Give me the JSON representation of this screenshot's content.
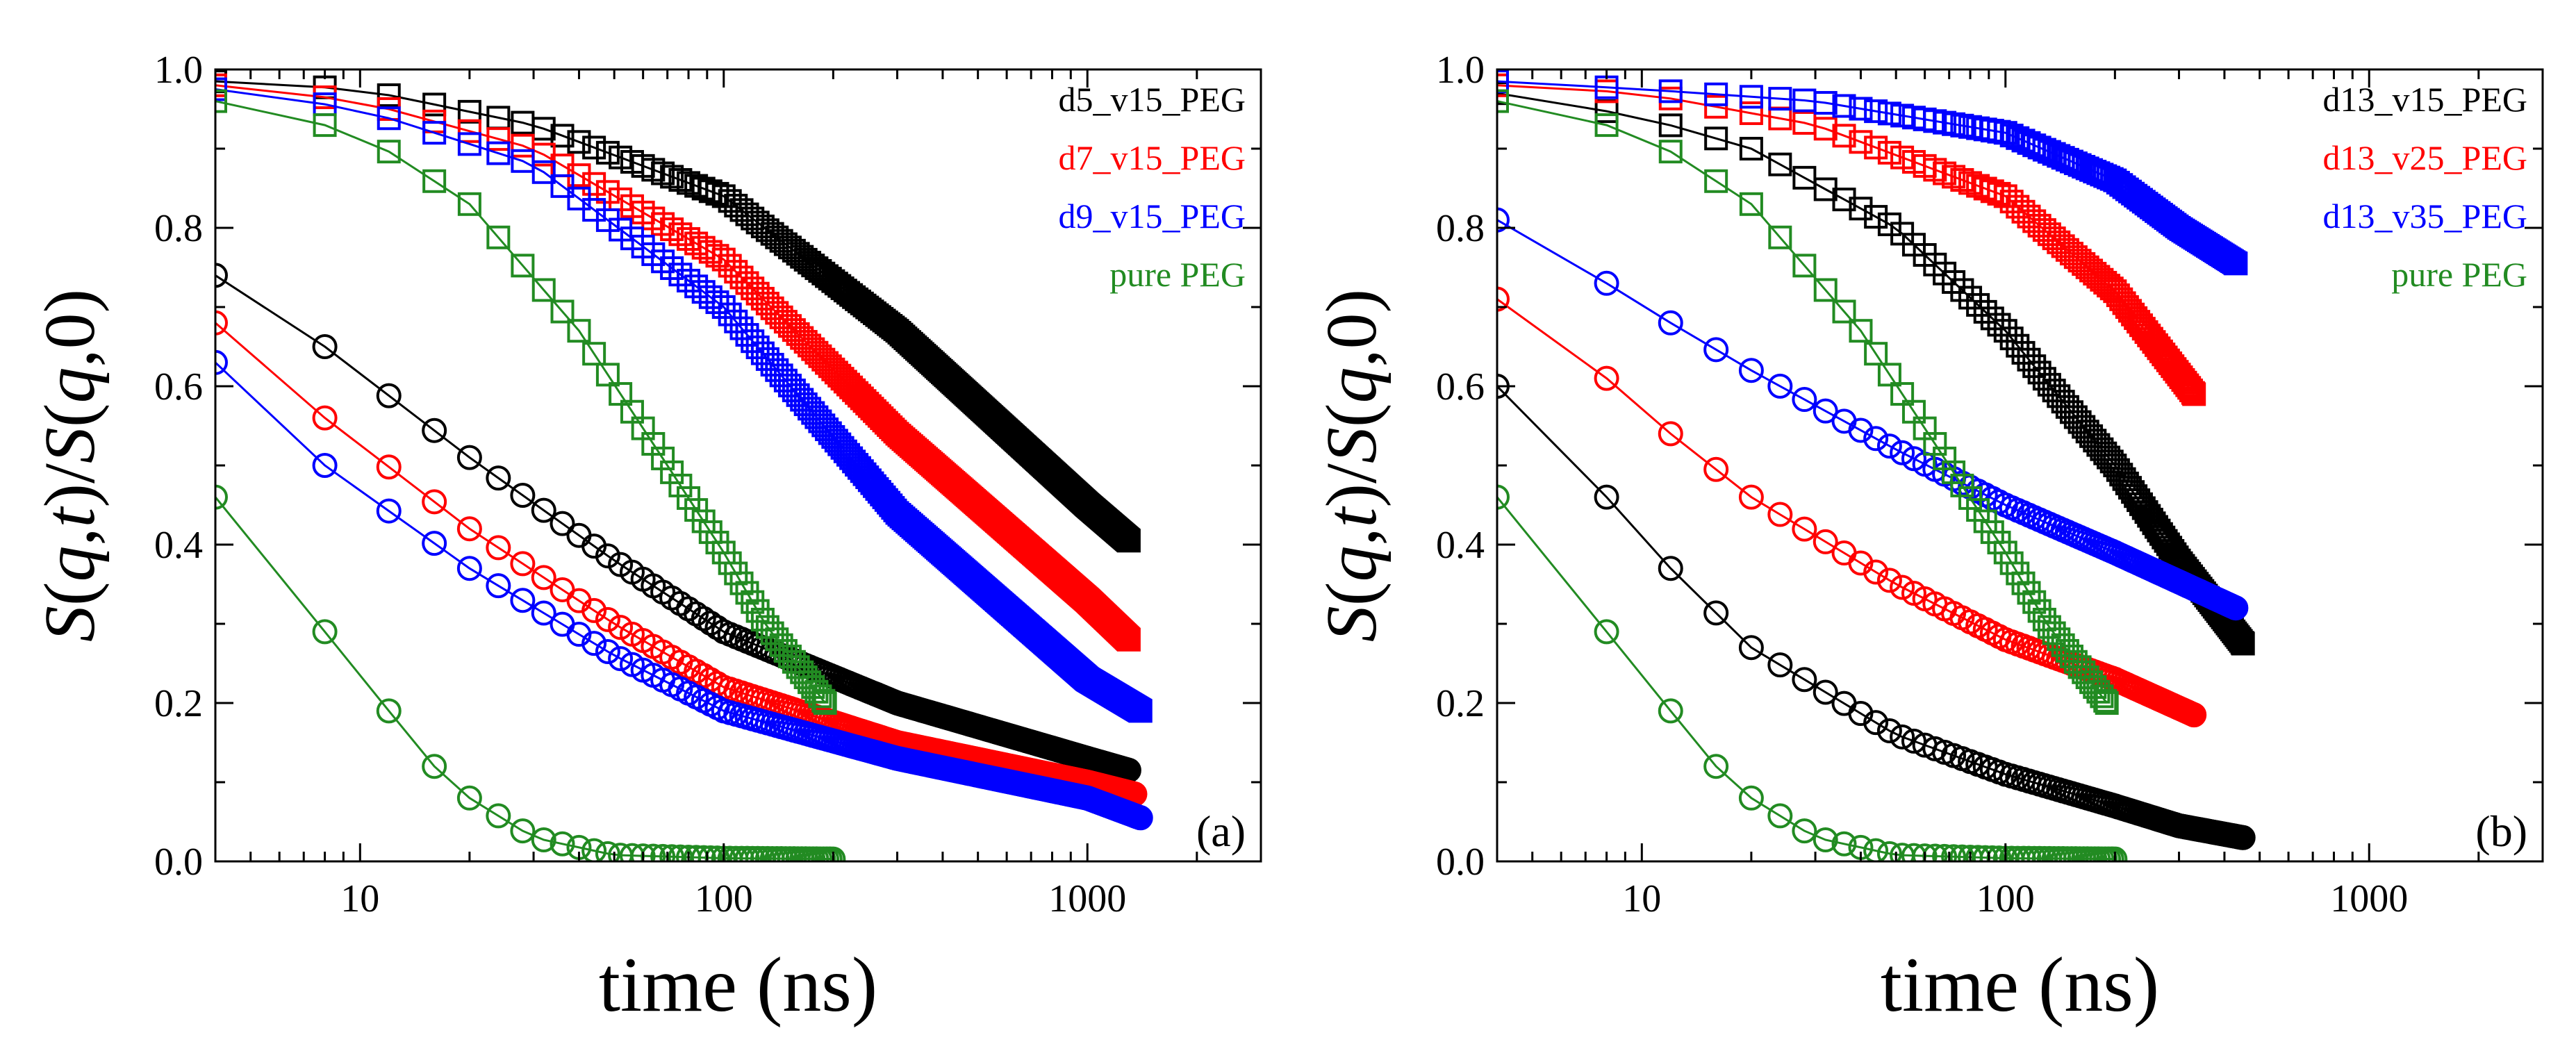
{
  "chart_data": [
    {
      "type": "scatter",
      "panel_label": "(a)",
      "xlabel": "time (ns)",
      "ylabel": "S(q,t)/S(q,0)",
      "xscale": "log",
      "xlim": [
        4,
        3000
      ],
      "ylim": [
        0.0,
        1.0
      ],
      "xticks": [
        10,
        100,
        1000
      ],
      "yticks": [
        0.0,
        0.2,
        0.4,
        0.6,
        0.8,
        1.0
      ],
      "legend_position": "top-right",
      "series": [
        {
          "name": "d5_v15_PEG",
          "color": "#000000",
          "high": {
            "t0": 4,
            "tEnd": 1300,
            "values": [
              [
                4,
                0.985
              ],
              [
                10,
                0.975
              ],
              [
                30,
                0.93
              ],
              [
                100,
                0.84
              ],
              [
                300,
                0.67
              ],
              [
                1000,
                0.45
              ],
              [
                1300,
                0.405
              ]
            ]
          },
          "low": {
            "t0": 4,
            "tEnd": 1300,
            "values": [
              [
                4,
                0.74
              ],
              [
                8,
                0.65
              ],
              [
                20,
                0.51
              ],
              [
                50,
                0.38
              ],
              [
                100,
                0.29
              ],
              [
                300,
                0.2
              ],
              [
                1000,
                0.13
              ],
              [
                1300,
                0.115
              ]
            ]
          }
        },
        {
          "name": "d7_v15_PEG",
          "color": "#ff0000",
          "high": {
            "t0": 4,
            "tEnd": 1300,
            "values": [
              [
                4,
                0.98
              ],
              [
                10,
                0.96
              ],
              [
                30,
                0.9
              ],
              [
                100,
                0.76
              ],
              [
                300,
                0.54
              ],
              [
                1000,
                0.33
              ],
              [
                1300,
                0.28
              ]
            ]
          },
          "low": {
            "t0": 4,
            "tEnd": 1350,
            "values": [
              [
                4,
                0.68
              ],
              [
                8,
                0.56
              ],
              [
                20,
                0.42
              ],
              [
                50,
                0.3
              ],
              [
                100,
                0.22
              ],
              [
                300,
                0.15
              ],
              [
                1000,
                0.1
              ],
              [
                1350,
                0.085
              ]
            ]
          }
        },
        {
          "name": "d9_v15_PEG",
          "color": "#0000ff",
          "high": {
            "t0": 4,
            "tEnd": 1400,
            "values": [
              [
                4,
                0.975
              ],
              [
                10,
                0.95
              ],
              [
                30,
                0.88
              ],
              [
                100,
                0.7
              ],
              [
                300,
                0.44
              ],
              [
                1000,
                0.23
              ],
              [
                1400,
                0.19
              ]
            ]
          },
          "low": {
            "t0": 4,
            "tEnd": 1400,
            "values": [
              [
                4,
                0.63
              ],
              [
                8,
                0.5
              ],
              [
                20,
                0.37
              ],
              [
                50,
                0.26
              ],
              [
                100,
                0.19
              ],
              [
                300,
                0.13
              ],
              [
                1000,
                0.08
              ],
              [
                1400,
                0.055
              ]
            ]
          }
        },
        {
          "name": "pure PEG",
          "color": "#228b22",
          "high": {
            "t0": 4,
            "tEnd": 190,
            "values": [
              [
                4,
                0.96
              ],
              [
                10,
                0.92
              ],
              [
                20,
                0.83
              ],
              [
                40,
                0.67
              ],
              [
                70,
                0.5
              ],
              [
                100,
                0.39
              ],
              [
                130,
                0.3
              ],
              [
                190,
                0.2
              ]
            ]
          },
          "low": {
            "t0": 4,
            "tEnd": 200,
            "values": [
              [
                4,
                0.46
              ],
              [
                8,
                0.29
              ],
              [
                12,
                0.19
              ],
              [
                16,
                0.12
              ],
              [
                20,
                0.08
              ],
              [
                30,
                0.03
              ],
              [
                50,
                0.008
              ],
              [
                100,
                0.004
              ],
              [
                200,
                0.003
              ]
            ]
          }
        }
      ]
    },
    {
      "type": "scatter",
      "panel_label": "(b)",
      "xlabel": "time (ns)",
      "ylabel": "S(q,t)/S(q,0)",
      "xscale": "log",
      "xlim": [
        4,
        3000
      ],
      "ylim": [
        0.0,
        1.0
      ],
      "xticks": [
        10,
        100,
        1000
      ],
      "yticks": [
        0.0,
        0.2,
        0.4,
        0.6,
        0.8,
        1.0
      ],
      "legend_position": "top-right",
      "series": [
        {
          "name": "d13_v15_PEG",
          "color": "#000000",
          "high": {
            "t0": 4,
            "tEnd": 450,
            "values": [
              [
                4,
                0.97
              ],
              [
                10,
                0.94
              ],
              [
                20,
                0.9
              ],
              [
                50,
                0.8
              ],
              [
                100,
                0.67
              ],
              [
                200,
                0.5
              ],
              [
                300,
                0.38
              ],
              [
                450,
                0.275
              ]
            ]
          },
          "low": {
            "t0": 4,
            "tEnd": 450,
            "values": [
              [
                4,
                0.6
              ],
              [
                8,
                0.46
              ],
              [
                12,
                0.37
              ],
              [
                20,
                0.27
              ],
              [
                50,
                0.16
              ],
              [
                100,
                0.11
              ],
              [
                200,
                0.07
              ],
              [
                300,
                0.045
              ],
              [
                450,
                0.03
              ]
            ]
          }
        },
        {
          "name": "d13_v25_PEG",
          "color": "#ff0000",
          "high": {
            "t0": 4,
            "tEnd": 330,
            "values": [
              [
                4,
                0.98
              ],
              [
                10,
                0.97
              ],
              [
                30,
                0.93
              ],
              [
                100,
                0.84
              ],
              [
                200,
                0.72
              ],
              [
                330,
                0.59
              ]
            ]
          },
          "low": {
            "t0": 4,
            "tEnd": 330,
            "values": [
              [
                4,
                0.71
              ],
              [
                8,
                0.61
              ],
              [
                12,
                0.54
              ],
              [
                20,
                0.46
              ],
              [
                50,
                0.35
              ],
              [
                100,
                0.28
              ],
              [
                200,
                0.23
              ],
              [
                330,
                0.185
              ]
            ]
          }
        },
        {
          "name": "d13_v35_PEG",
          "color": "#0000ff",
          "high": {
            "t0": 4,
            "tEnd": 430,
            "values": [
              [
                4,
                0.985
              ],
              [
                10,
                0.975
              ],
              [
                30,
                0.96
              ],
              [
                100,
                0.92
              ],
              [
                200,
                0.86
              ],
              [
                300,
                0.8
              ],
              [
                430,
                0.755
              ]
            ]
          },
          "low": {
            "t0": 4,
            "tEnd": 430,
            "values": [
              [
                4,
                0.81
              ],
              [
                8,
                0.73
              ],
              [
                12,
                0.68
              ],
              [
                20,
                0.62
              ],
              [
                50,
                0.52
              ],
              [
                100,
                0.45
              ],
              [
                200,
                0.39
              ],
              [
                430,
                0.32
              ]
            ]
          }
        },
        {
          "name": "pure PEG",
          "color": "#228b22",
          "high": {
            "t0": 4,
            "tEnd": 190,
            "values": [
              [
                4,
                0.96
              ],
              [
                10,
                0.92
              ],
              [
                20,
                0.83
              ],
              [
                40,
                0.67
              ],
              [
                70,
                0.5
              ],
              [
                100,
                0.39
              ],
              [
                130,
                0.3
              ],
              [
                190,
                0.2
              ]
            ]
          },
          "low": {
            "t0": 4,
            "tEnd": 200,
            "values": [
              [
                4,
                0.46
              ],
              [
                8,
                0.29
              ],
              [
                12,
                0.19
              ],
              [
                16,
                0.12
              ],
              [
                20,
                0.08
              ],
              [
                30,
                0.03
              ],
              [
                50,
                0.008
              ],
              [
                100,
                0.004
              ],
              [
                200,
                0.003
              ]
            ]
          }
        }
      ]
    }
  ]
}
